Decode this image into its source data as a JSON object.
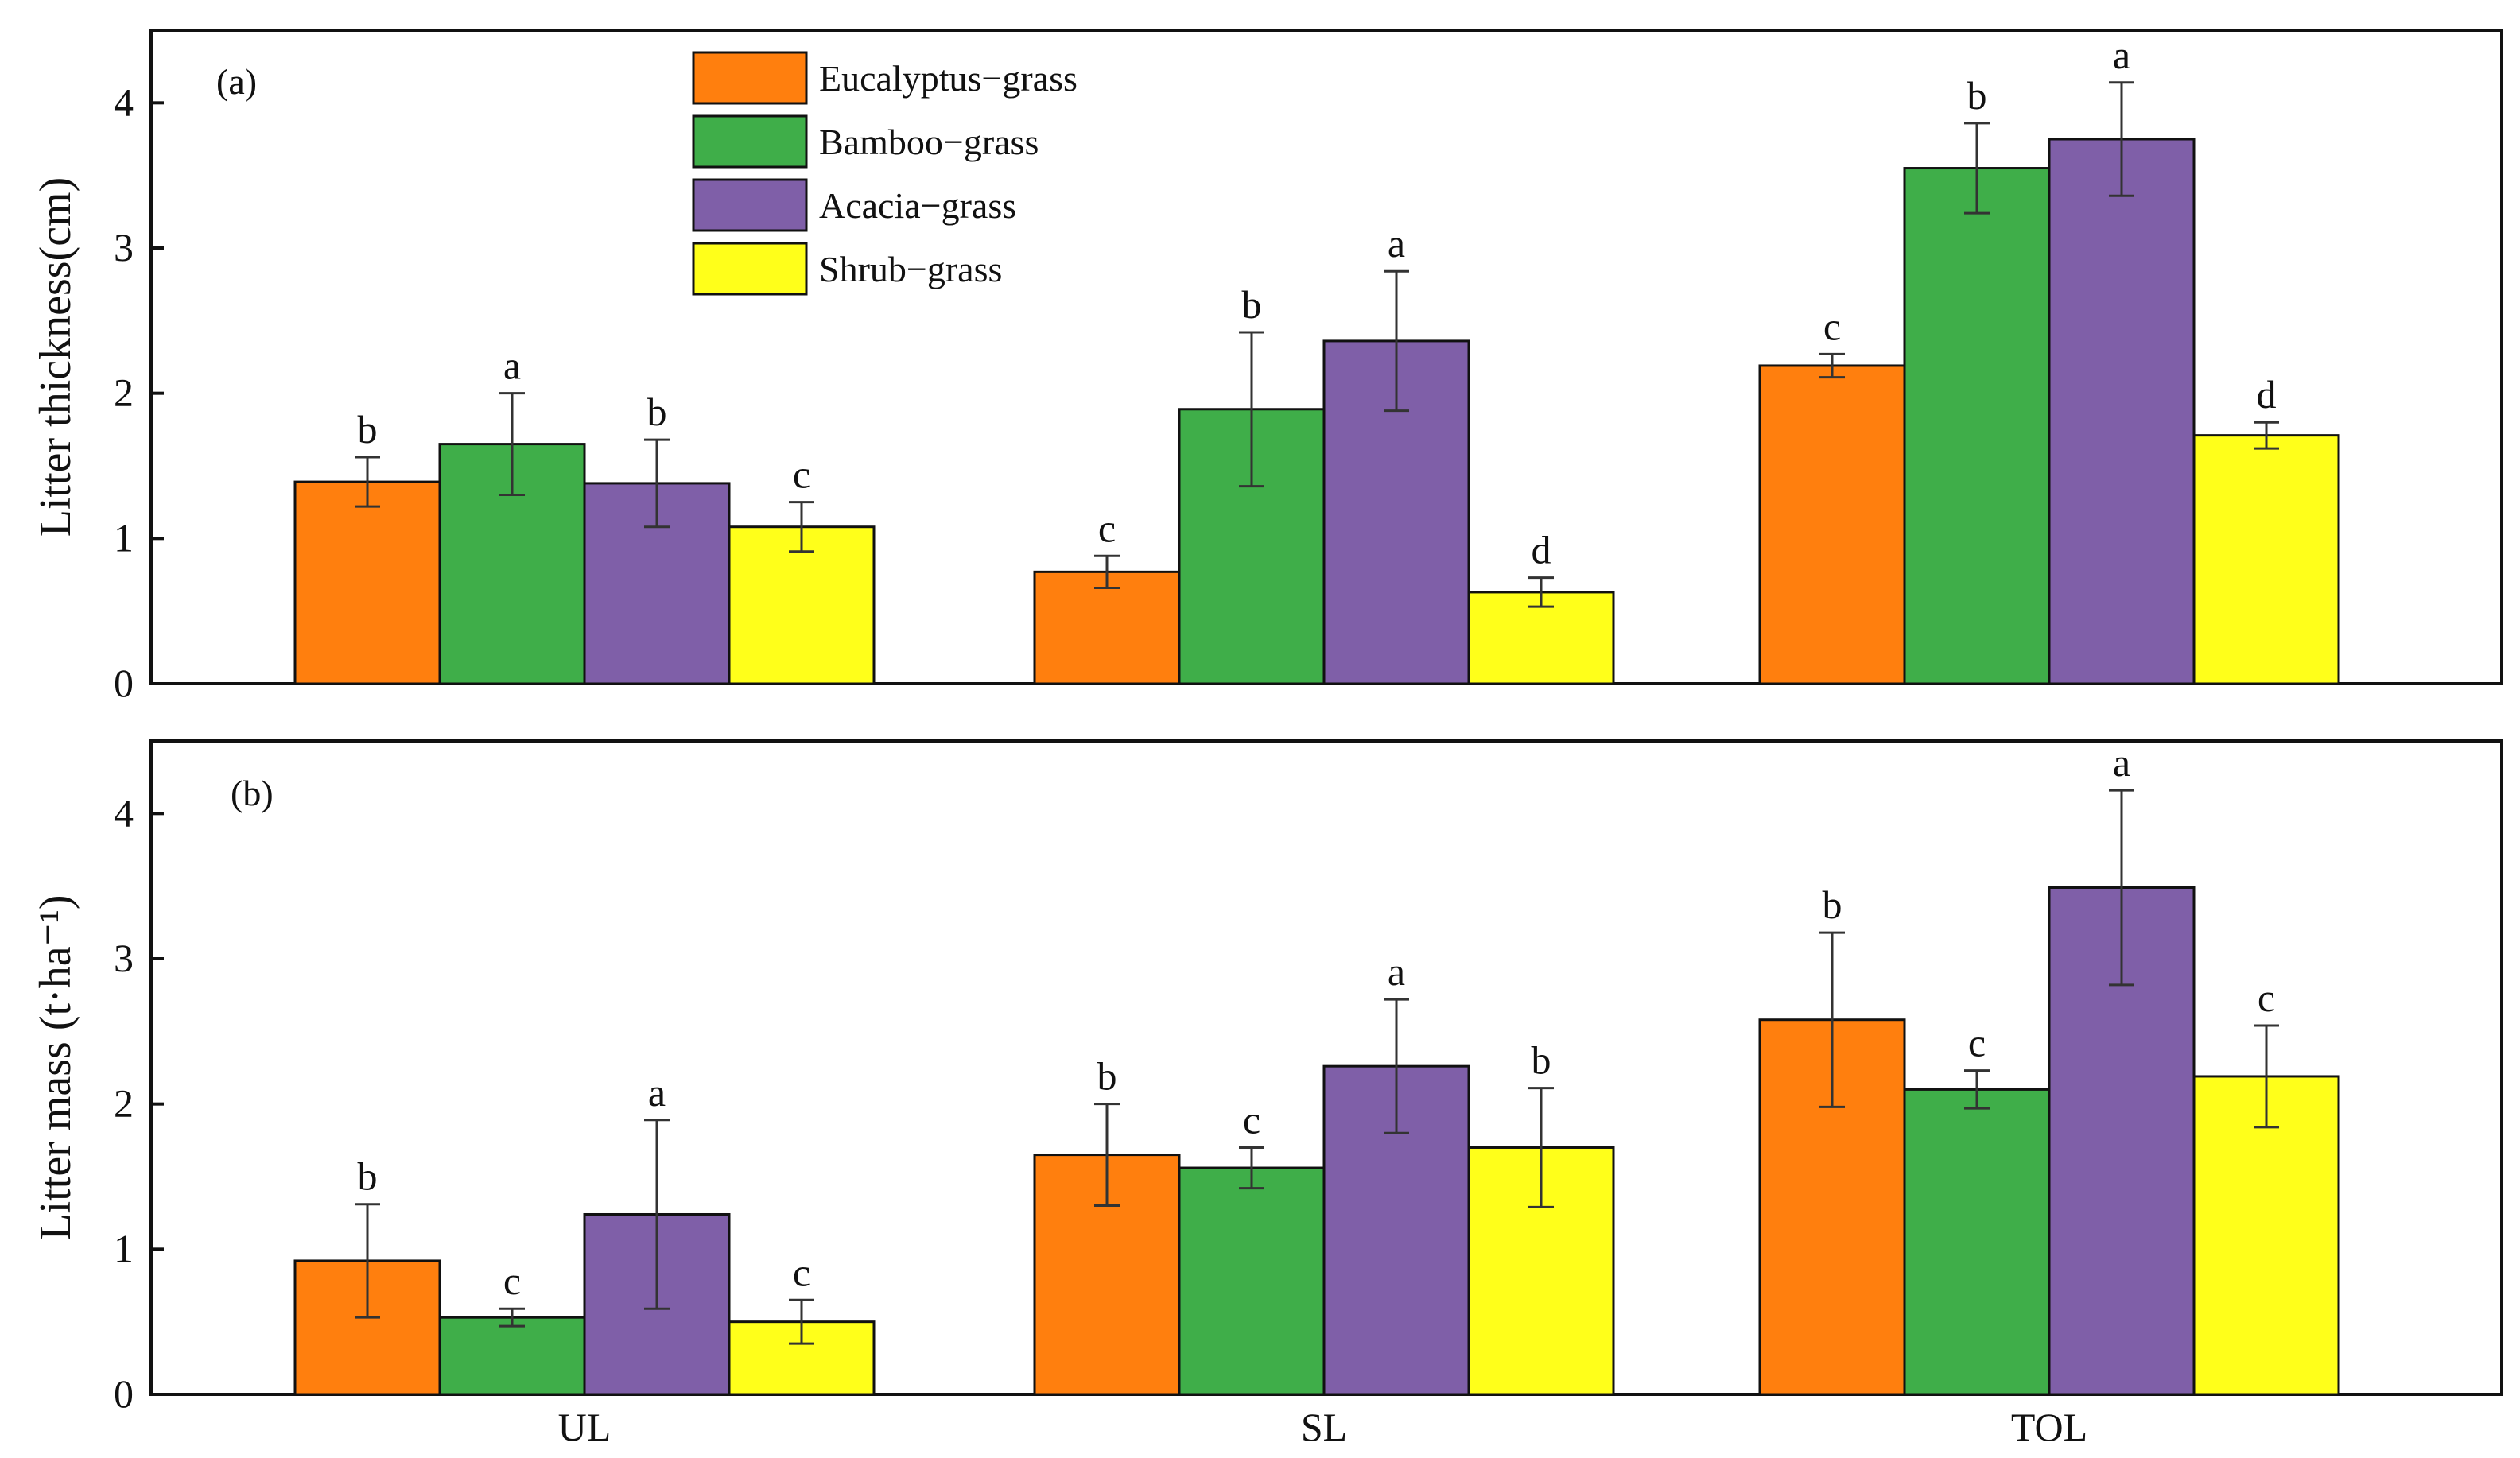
{
  "legend": {
    "entries": [
      "Eucalyptus−grass",
      "Bamboo−grass",
      "Acacia−grass",
      "Shrub−grass"
    ],
    "placement": "top-left, inside panel (a)"
  },
  "colors": {
    "Eucalyptus−grass": "#FF7F0E",
    "Bamboo−grass": "#3FAE49",
    "Acacia−grass": "#7F5FA8",
    "Shrub−grass": "#FFFF1A"
  },
  "chart_data": [
    {
      "type": "bar",
      "panel_label": "(a)",
      "title": "",
      "xlabel": "",
      "ylabel": "Litter thickness(cm)",
      "ylim": [
        0,
        4.5
      ],
      "yticks": [
        "0",
        "1",
        "2",
        "3",
        "4"
      ],
      "categories": [
        "UL",
        "SL",
        "TOL"
      ],
      "show_xticklabels": false,
      "series": [
        {
          "name": "Eucalyptus−grass",
          "values": [
            1.39,
            0.77,
            2.19
          ],
          "errors": [
            0.17,
            0.11,
            0.08
          ],
          "letters": [
            "b",
            "c",
            "c"
          ]
        },
        {
          "name": "Bamboo−grass",
          "values": [
            1.65,
            1.89,
            3.55
          ],
          "errors": [
            0.35,
            0.53,
            0.31
          ],
          "letters": [
            "a",
            "b",
            "b"
          ]
        },
        {
          "name": "Acacia−grass",
          "values": [
            1.38,
            2.36,
            3.75
          ],
          "errors": [
            0.3,
            0.48,
            0.39
          ],
          "letters": [
            "b",
            "a",
            "a"
          ]
        },
        {
          "name": "Shrub−grass",
          "values": [
            1.08,
            0.63,
            1.71
          ],
          "errors": [
            0.17,
            0.1,
            0.09
          ],
          "letters": [
            "c",
            "d",
            "d"
          ]
        }
      ]
    },
    {
      "type": "bar",
      "panel_label": "(b)",
      "title": "",
      "xlabel": "",
      "ylabel": "Litter mass (t·ha⁻¹)",
      "ylim": [
        0,
        4.5
      ],
      "yticks": [
        "0",
        "1",
        "2",
        "3",
        "4"
      ],
      "categories": [
        "UL",
        "SL",
        "TOL"
      ],
      "show_xticklabels": true,
      "series": [
        {
          "name": "Eucalyptus−grass",
          "values": [
            0.92,
            1.65,
            2.58
          ],
          "errors": [
            0.39,
            0.35,
            0.6
          ],
          "letters": [
            "b",
            "b",
            "b"
          ]
        },
        {
          "name": "Bamboo−grass",
          "values": [
            0.53,
            1.56,
            2.1
          ],
          "errors": [
            0.06,
            0.14,
            0.13
          ],
          "letters": [
            "c",
            "c",
            "c"
          ]
        },
        {
          "name": "Acacia−grass",
          "values": [
            1.24,
            2.26,
            3.49
          ],
          "errors": [
            0.65,
            0.46,
            0.67
          ],
          "letters": [
            "a",
            "a",
            "a"
          ]
        },
        {
          "name": "Shrub−grass",
          "values": [
            0.5,
            1.7,
            2.19
          ],
          "errors": [
            0.15,
            0.41,
            0.35
          ],
          "letters": [
            "c",
            "b",
            "c"
          ]
        }
      ]
    }
  ]
}
